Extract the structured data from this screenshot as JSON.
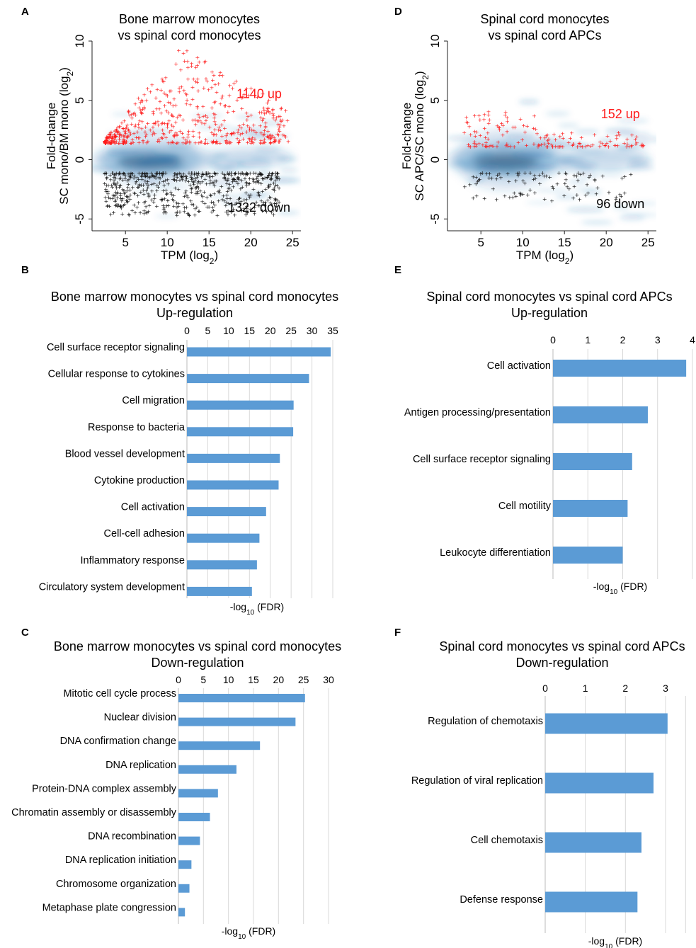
{
  "colors": {
    "bar": "#5b9bd5",
    "up": "#ff1a1a",
    "down": "#111111",
    "density": "#1f6fb0",
    "grid": "#d9d9d9"
  },
  "chart_data": [
    {
      "panel": "A",
      "type": "scatter",
      "title": "Bone marrow monocytes\nvs spinal cord monocytes",
      "xlabel": "TPM (log2)",
      "ylabel_line1": "Fold-change",
      "ylabel_line2": "SC mono/BM mono (log2)",
      "xlim": [
        1,
        26
      ],
      "ylim": [
        -6,
        10
      ],
      "xticks": [
        5,
        10,
        15,
        20,
        25
      ],
      "yticks": [
        -5,
        0,
        5,
        10
      ],
      "up_label": "1140 up",
      "down_label": "1322 down",
      "up_count": 1140,
      "down_count": 1322
    },
    {
      "panel": "D",
      "type": "scatter",
      "title": "Spinal cord monocytes\nvs spinal cord APCs",
      "xlabel": "TPM (log2)",
      "ylabel_line1": "Fold-change",
      "ylabel_line2": "SC APC/SC mono (log2)",
      "xlim": [
        1,
        26
      ],
      "ylim": [
        -6,
        10
      ],
      "xticks": [
        5,
        10,
        15,
        20,
        25
      ],
      "yticks": [
        -5,
        0,
        5,
        10
      ],
      "up_label": "152 up",
      "down_label": "96 down",
      "up_count": 152,
      "down_count": 96
    },
    {
      "panel": "B",
      "type": "bar",
      "title": "Bone marrow monocytes vs spinal cord monocytes\nUp-regulation",
      "xlabel": "-log10 (FDR)",
      "xlim": [
        0,
        35
      ],
      "xticks": [
        0,
        5,
        10,
        15,
        20,
        25,
        30,
        35
      ],
      "categories": [
        "Cell surface receptor signaling",
        "Cellular response to cytokines",
        "Cell migration",
        "Response to bacteria",
        "Blood vessel development",
        "Cytokine production",
        "Cell activation",
        "Cell-cell adhesion",
        "Inflammatory response",
        "Circulatory system development"
      ],
      "values": [
        34.5,
        29.3,
        25.6,
        25.5,
        22.3,
        22.0,
        19.0,
        17.4,
        16.8,
        15.6
      ]
    },
    {
      "panel": "C",
      "type": "bar",
      "title": "Bone marrow monocytes vs spinal cord monocytes\nDown-regulation",
      "xlabel": "-log10 (FDR)",
      "xlim": [
        0,
        30
      ],
      "xticks": [
        0,
        5,
        10,
        15,
        20,
        25,
        30
      ],
      "categories": [
        "Mitotic cell cycle process",
        "Nuclear division",
        "DNA confirmation change",
        "DNA replication",
        "Protein-DNA complex assembly",
        "Chromatin assembly or disassembly",
        "DNA recombination",
        "DNA replication initiation",
        "Chromosome organization",
        "Metaphase plate congression"
      ],
      "values": [
        25.3,
        23.4,
        16.3,
        11.6,
        7.9,
        6.3,
        4.3,
        2.6,
        2.2,
        1.3
      ]
    },
    {
      "panel": "E",
      "type": "bar",
      "title": "Spinal cord monocytes vs spinal cord APCs\nUp-regulation",
      "xlabel": "-log10 (FDR)",
      "xlim": [
        0,
        4
      ],
      "xticks": [
        0,
        1,
        2,
        3,
        4
      ],
      "categories": [
        "Cell activation",
        "Antigen processing/presentation",
        "Cell surface receptor signaling",
        "Cell motility",
        "Leukocyte differentiation"
      ],
      "values": [
        3.82,
        2.72,
        2.27,
        2.14,
        2.0
      ]
    },
    {
      "panel": "F",
      "type": "bar",
      "title": "Spinal cord monocytes vs spinal cord APCs\nDown-regulation",
      "xlabel": "-log10 (FDR)",
      "xlim": [
        0,
        3
      ],
      "xticks": [
        0,
        1,
        2,
        3
      ],
      "categories": [
        "Regulation of chemotaxis",
        "Regulation of viral replication",
        "Cell chemotaxis",
        "Defense response"
      ],
      "values": [
        3.05,
        2.7,
        2.4,
        2.3
      ]
    }
  ]
}
